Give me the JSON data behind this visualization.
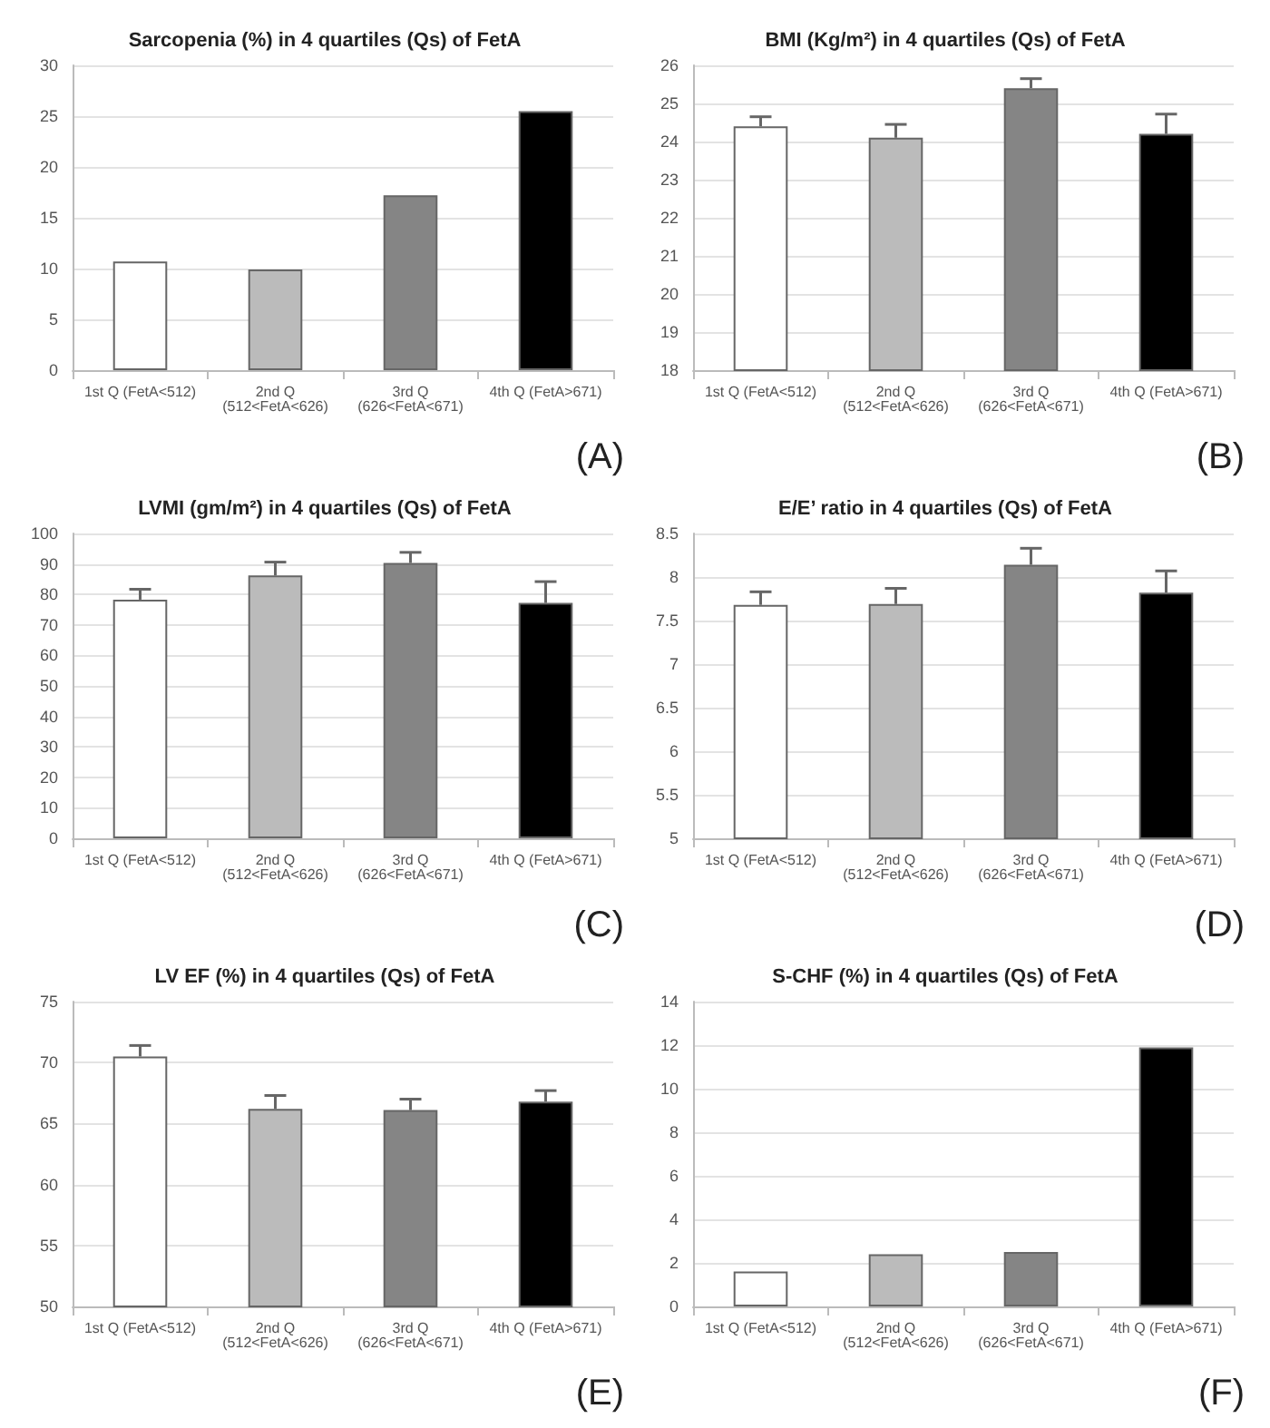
{
  "chart_data": [
    {
      "type": "bar",
      "title": "Sarcopenia (%) in 4 quartiles (Qs) of FetA",
      "categories": [
        "1st Q (FetA<512)",
        "2nd Q\n(512<FetA<626)",
        "3rd Q\n(626<FetA<671)",
        "4th Q (FetA>671)"
      ],
      "values": [
        10.7,
        9.9,
        17.2,
        25.5
      ],
      "colors": [
        "#ffffff",
        "#bbbbbb",
        "#858585",
        "#000000"
      ],
      "ylim": [
        0,
        30
      ],
      "yticks": [
        0,
        5,
        10,
        15,
        20,
        25,
        30
      ],
      "grid": "y",
      "annotations": [
        "(A)"
      ]
    },
    {
      "type": "bar",
      "title": "BMI (Kg/m²) in 4 quartiles (Qs) of FetA",
      "categories": [
        "1st Q (FetA<512)",
        "2nd Q\n(512<FetA<626)",
        "3rd Q\n(626<FetA<671)",
        "4th Q (FetA>671)"
      ],
      "values": [
        24.4,
        24.1,
        25.4,
        24.2
      ],
      "errors": [
        [
          24.4,
          24.65
        ],
        [
          24.1,
          24.45
        ],
        [
          25.4,
          25.65
        ],
        [
          24.2,
          24.72
        ]
      ],
      "colors": [
        "#ffffff",
        "#bbbbbb",
        "#858585",
        "#000000"
      ],
      "ylim": [
        18,
        26
      ],
      "yticks": [
        18,
        19,
        20,
        21,
        22,
        23,
        24,
        25,
        26
      ],
      "grid": "y",
      "annotations": [
        "(B)"
      ]
    },
    {
      "type": "bar",
      "title": "LVMI (gm/m²) in 4 quartiles (Qs) of FetA",
      "categories": [
        "1st Q (FetA<512)",
        "2nd Q\n(512<FetA<626)",
        "3rd Q\n(626<FetA<671)",
        "4th Q (FetA>671)"
      ],
      "values": [
        78.3,
        86.2,
        90.3,
        77.2
      ],
      "errors": [
        [
          78.3,
          81.7
        ],
        [
          86.2,
          90.6
        ],
        [
          90.3,
          93.8
        ],
        [
          77.2,
          84.2
        ]
      ],
      "colors": [
        "#ffffff",
        "#bbbbbb",
        "#858585",
        "#000000"
      ],
      "ylim": [
        0,
        100
      ],
      "yticks": [
        0,
        10,
        20,
        30,
        40,
        50,
        60,
        70,
        80,
        90,
        100
      ],
      "grid": "y",
      "annotations": [
        "(C)"
      ]
    },
    {
      "type": "bar",
      "title": "E/E’ ratio in 4 quartiles (Qs) of FetA",
      "categories": [
        "1st Q (FetA<512)",
        "2nd Q\n(512<FetA<626)",
        "3rd Q\n(626<FetA<671)",
        "4th Q (FetA>671)"
      ],
      "values": [
        7.68,
        7.69,
        8.14,
        7.82
      ],
      "errors": [
        [
          7.68,
          7.83
        ],
        [
          7.69,
          7.87
        ],
        [
          8.14,
          8.33
        ],
        [
          7.82,
          8.07
        ]
      ],
      "colors": [
        "#ffffff",
        "#bbbbbb",
        "#858585",
        "#000000"
      ],
      "ylim": [
        5,
        8.5
      ],
      "yticks": [
        5,
        5.5,
        6,
        6.5,
        7,
        7.5,
        8,
        8.5
      ],
      "grid": "y",
      "annotations": [
        "(D)"
      ]
    },
    {
      "type": "bar",
      "title": "LV EF (%) in 4 quartiles (Qs) of FetA",
      "categories": [
        "1st Q (FetA<512)",
        "2nd Q\n(512<FetA<626)",
        "3rd Q\n(626<FetA<671)",
        "4th Q (FetA>671)"
      ],
      "values": [
        70.5,
        66.2,
        66.1,
        66.8
      ],
      "errors": [
        [
          70.5,
          71.4
        ],
        [
          66.2,
          67.3
        ],
        [
          66.1,
          67.0
        ],
        [
          66.8,
          67.7
        ]
      ],
      "colors": [
        "#ffffff",
        "#bbbbbb",
        "#858585",
        "#000000"
      ],
      "ylim": [
        50,
        75
      ],
      "yticks": [
        50,
        55,
        60,
        65,
        70,
        75
      ],
      "grid": "y",
      "annotations": [
        "(E)"
      ]
    },
    {
      "type": "bar",
      "title": "S-CHF (%) in 4 quartiles (Qs) of FetA",
      "categories": [
        "1st Q (FetA<512)",
        "2nd Q\n(512<FetA<626)",
        "3rd Q\n(626<FetA<671)",
        "4th Q (FetA>671)"
      ],
      "values": [
        1.6,
        2.4,
        2.5,
        11.9
      ],
      "colors": [
        "#ffffff",
        "#bbbbbb",
        "#858585",
        "#000000"
      ],
      "ylim": [
        0,
        14
      ],
      "yticks": [
        0,
        2,
        4,
        6,
        8,
        10,
        12,
        14
      ],
      "grid": "y",
      "annotations": [
        "(F)"
      ]
    }
  ]
}
